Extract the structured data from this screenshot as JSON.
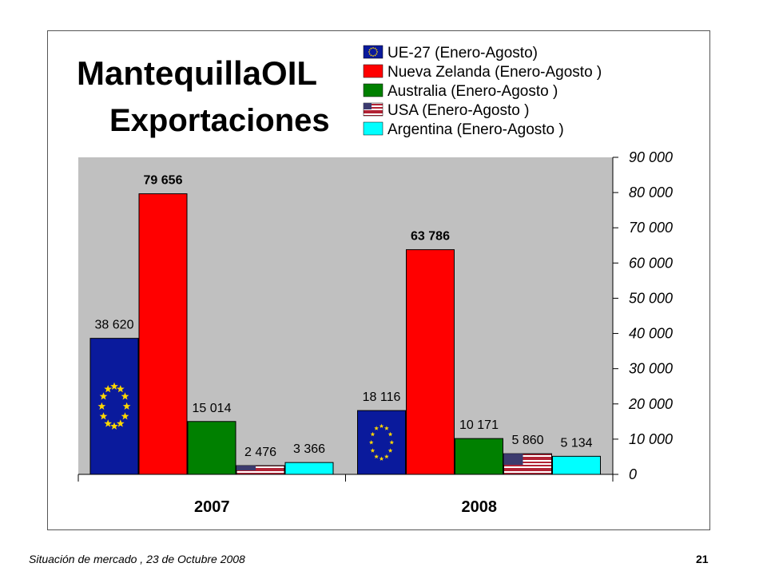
{
  "title_line1": "MantequillaOIL",
  "title_line2": "Exportaciones",
  "footer": {
    "text": "Situación de mercado , 23 de  Octubre  2008",
    "page": "21"
  },
  "chart_data": {
    "type": "bar",
    "categories": [
      "2007",
      "2008"
    ],
    "ylim": [
      0,
      90000
    ],
    "yticks": [
      0,
      10000,
      20000,
      30000,
      40000,
      50000,
      60000,
      70000,
      80000,
      90000
    ],
    "ytick_labels": [
      "0",
      "10 000",
      "20 000",
      "30 000",
      "40 000",
      "50 000",
      "60 000",
      "70 000",
      "80 000",
      "90 000"
    ],
    "y_axis_side": "right",
    "legend_position": "top-right",
    "plot_background": "#c0c0c0",
    "series": [
      {
        "name": "UE-27 (Enero-Agosto)",
        "values": [
          38620,
          18116
        ],
        "labels": [
          "38 620",
          "18 116"
        ],
        "color": "#0a1a9c",
        "pattern": "eu-flag",
        "bold_label": false
      },
      {
        "name": "Nueva Zelanda (Enero-Agosto )",
        "values": [
          79656,
          63786
        ],
        "labels": [
          "79 656",
          "63 786"
        ],
        "color": "#ff0000",
        "pattern": "solid",
        "bold_label": true
      },
      {
        "name": "Australia (Enero-Agosto )",
        "values": [
          15014,
          10171
        ],
        "labels": [
          "15 014",
          "10 171"
        ],
        "color": "#008000",
        "pattern": "solid",
        "bold_label": false
      },
      {
        "name": "USA (Enero-Agosto )",
        "values": [
          2476,
          5860
        ],
        "labels": [
          "2 476",
          "5 860"
        ],
        "color": "#b22234",
        "pattern": "us-flag",
        "bold_label": false
      },
      {
        "name": "Argentina (Enero-Agosto )",
        "values": [
          3366,
          5134
        ],
        "labels": [
          "3 366",
          "5 134"
        ],
        "color": "#00ffff",
        "pattern": "solid",
        "bold_label": false
      }
    ]
  }
}
